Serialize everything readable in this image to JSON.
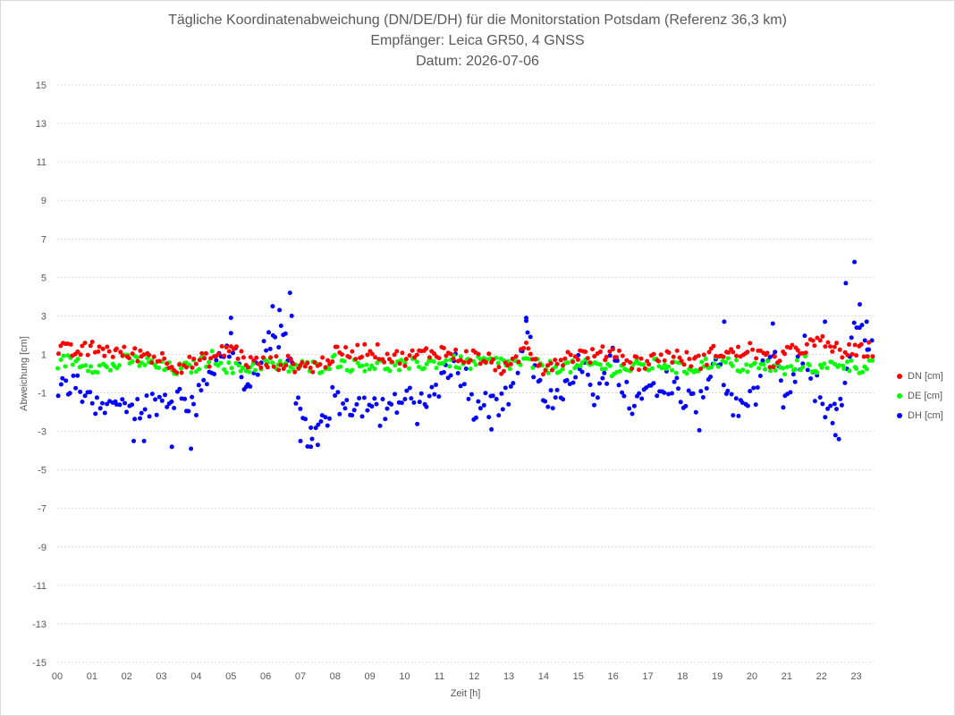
{
  "chart_data": {
    "type": "scatter",
    "title": "Tägliche Koordinatenabweichung (DN/DE/DH) für die Monitorstation Potsdam (Referenz 36,3 km)",
    "subtitle_1": "Empfänger: Leica GR50, 4 GNSS",
    "subtitle_2": "Datum: 2026-07-06",
    "xlabel": "Zeit [h]",
    "ylabel": "Abweichung [cm]",
    "xlim": [
      0,
      23.5
    ],
    "ylim": [
      -15,
      15
    ],
    "x_ticks": [
      "00",
      "01",
      "02",
      "03",
      "04",
      "05",
      "06",
      "07",
      "08",
      "09",
      "10",
      "11",
      "12",
      "13",
      "14",
      "15",
      "16",
      "17",
      "18",
      "19",
      "20",
      "21",
      "22",
      "23"
    ],
    "y_ticks": [
      15,
      13,
      11,
      9,
      7,
      5,
      3,
      1,
      -1,
      -3,
      -5,
      -7,
      -9,
      -11,
      -13,
      -15
    ],
    "grid": "horizontal dotted",
    "legend_position": "right",
    "series": [
      {
        "name": "DN [cm]",
        "color": "#ff0000",
        "segments": [
          {
            "t": 0.0,
            "v": 1.3
          },
          {
            "t": 0.5,
            "v": 1.1
          },
          {
            "t": 1.0,
            "v": 1.3
          },
          {
            "t": 1.5,
            "v": 1.2
          },
          {
            "t": 2.0,
            "v": 1.0
          },
          {
            "t": 2.5,
            "v": 1.0
          },
          {
            "t": 3.0,
            "v": 0.8
          },
          {
            "t": 3.5,
            "v": 0.4
          },
          {
            "t": 4.0,
            "v": 0.6
          },
          {
            "t": 4.5,
            "v": 0.8
          },
          {
            "t": 5.0,
            "v": 1.4
          },
          {
            "t": 5.5,
            "v": 0.6
          },
          {
            "t": 6.0,
            "v": 0.5
          },
          {
            "t": 6.5,
            "v": 0.6
          },
          {
            "t": 7.0,
            "v": 0.4
          },
          {
            "t": 7.5,
            "v": 0.4
          },
          {
            "t": 8.0,
            "v": 1.0
          },
          {
            "t": 8.5,
            "v": 1.1
          },
          {
            "t": 9.0,
            "v": 1.3
          },
          {
            "t": 9.5,
            "v": 0.9
          },
          {
            "t": 10.0,
            "v": 0.8
          },
          {
            "t": 10.5,
            "v": 1.0
          },
          {
            "t": 11.0,
            "v": 1.2
          },
          {
            "t": 11.5,
            "v": 0.9
          },
          {
            "t": 12.0,
            "v": 0.9
          },
          {
            "t": 12.5,
            "v": 0.6
          },
          {
            "t": 13.0,
            "v": 0.1
          },
          {
            "t": 13.5,
            "v": 1.5
          },
          {
            "t": 14.0,
            "v": 0.3
          },
          {
            "t": 14.5,
            "v": 0.8
          },
          {
            "t": 15.0,
            "v": 1.0
          },
          {
            "t": 15.5,
            "v": 0.9
          },
          {
            "t": 16.0,
            "v": 1.2
          },
          {
            "t": 16.5,
            "v": 0.6
          },
          {
            "t": 17.0,
            "v": 0.6
          },
          {
            "t": 17.5,
            "v": 1.0
          },
          {
            "t": 18.0,
            "v": 0.8
          },
          {
            "t": 18.5,
            "v": 0.6
          },
          {
            "t": 19.0,
            "v": 1.2
          },
          {
            "t": 19.5,
            "v": 1.0
          },
          {
            "t": 20.0,
            "v": 1.3
          },
          {
            "t": 20.5,
            "v": 0.6
          },
          {
            "t": 21.0,
            "v": 1.0
          },
          {
            "t": 21.5,
            "v": 1.4
          },
          {
            "t": 22.0,
            "v": 1.6
          },
          {
            "t": 22.5,
            "v": 1.2
          },
          {
            "t": 23.0,
            "v": 1.1
          },
          {
            "t": 23.5,
            "v": 1.3
          }
        ],
        "noise": 0.4
      },
      {
        "name": "DE [cm]",
        "color": "#00ff00",
        "segments": [
          {
            "t": 0.0,
            "v": 0.6
          },
          {
            "t": 0.5,
            "v": 0.7
          },
          {
            "t": 1.0,
            "v": 0.4
          },
          {
            "t": 1.5,
            "v": 0.3
          },
          {
            "t": 2.0,
            "v": 0.7
          },
          {
            "t": 2.5,
            "v": 0.6
          },
          {
            "t": 3.0,
            "v": 0.3
          },
          {
            "t": 3.5,
            "v": 0.2
          },
          {
            "t": 4.0,
            "v": 0.4
          },
          {
            "t": 4.5,
            "v": 0.9
          },
          {
            "t": 5.0,
            "v": 0.2
          },
          {
            "t": 5.5,
            "v": 0.3
          },
          {
            "t": 6.0,
            "v": 0.6
          },
          {
            "t": 6.5,
            "v": 0.3
          },
          {
            "t": 7.0,
            "v": 0.4
          },
          {
            "t": 7.5,
            "v": 0.3
          },
          {
            "t": 8.0,
            "v": 0.7
          },
          {
            "t": 8.5,
            "v": 0.4
          },
          {
            "t": 9.0,
            "v": 0.5
          },
          {
            "t": 9.5,
            "v": 0.4
          },
          {
            "t": 10.0,
            "v": 0.4
          },
          {
            "t": 10.5,
            "v": 0.5
          },
          {
            "t": 11.0,
            "v": 0.6
          },
          {
            "t": 11.5,
            "v": 0.6
          },
          {
            "t": 12.0,
            "v": 0.5
          },
          {
            "t": 12.5,
            "v": 0.6
          },
          {
            "t": 13.0,
            "v": 0.5
          },
          {
            "t": 13.5,
            "v": 0.6
          },
          {
            "t": 14.0,
            "v": 0.3
          },
          {
            "t": 14.5,
            "v": 0.4
          },
          {
            "t": 15.0,
            "v": 0.3
          },
          {
            "t": 15.5,
            "v": 0.5
          },
          {
            "t": 16.0,
            "v": 0.2
          },
          {
            "t": 16.5,
            "v": 0.3
          },
          {
            "t": 17.0,
            "v": 0.4
          },
          {
            "t": 17.5,
            "v": 0.5
          },
          {
            "t": 18.0,
            "v": 0.2
          },
          {
            "t": 18.5,
            "v": 0.4
          },
          {
            "t": 19.0,
            "v": 0.7
          },
          {
            "t": 19.5,
            "v": 0.4
          },
          {
            "t": 20.0,
            "v": 0.3
          },
          {
            "t": 20.5,
            "v": 0.4
          },
          {
            "t": 21.0,
            "v": 0.1
          },
          {
            "t": 21.5,
            "v": 0.6
          },
          {
            "t": 22.0,
            "v": 0.2
          },
          {
            "t": 22.5,
            "v": 0.6
          },
          {
            "t": 23.0,
            "v": 0.3
          },
          {
            "t": 23.5,
            "v": 0.6
          }
        ],
        "noise": 0.35
      },
      {
        "name": "DH [cm]",
        "color": "#0000ff",
        "segments": [
          {
            "t": 0.0,
            "v": -0.9
          },
          {
            "t": 0.5,
            "v": -0.5
          },
          {
            "t": 1.0,
            "v": -1.6
          },
          {
            "t": 1.5,
            "v": -1.3
          },
          {
            "t": 2.0,
            "v": -2.2
          },
          {
            "t": 2.5,
            "v": -1.6
          },
          {
            "t": 3.0,
            "v": -1.4
          },
          {
            "t": 3.5,
            "v": -1.2
          },
          {
            "t": 4.0,
            "v": -1.6
          },
          {
            "t": 4.5,
            "v": 0.6
          },
          {
            "t": 5.0,
            "v": 1.5
          },
          {
            "t": 5.5,
            "v": -1.2
          },
          {
            "t": 6.0,
            "v": 1.6
          },
          {
            "t": 6.5,
            "v": 2.6
          },
          {
            "t": 7.0,
            "v": -2.5
          },
          {
            "t": 7.5,
            "v": -3.0
          },
          {
            "t": 8.0,
            "v": -1.3
          },
          {
            "t": 8.5,
            "v": -1.6
          },
          {
            "t": 9.0,
            "v": -1.5
          },
          {
            "t": 9.5,
            "v": -1.8
          },
          {
            "t": 10.0,
            "v": -1.3
          },
          {
            "t": 10.5,
            "v": -1.6
          },
          {
            "t": 11.0,
            "v": -0.5
          },
          {
            "t": 11.5,
            "v": 0.4
          },
          {
            "t": 12.0,
            "v": -2.0
          },
          {
            "t": 12.5,
            "v": -1.7
          },
          {
            "t": 13.0,
            "v": -1.2
          },
          {
            "t": 13.5,
            "v": 2.2
          },
          {
            "t": 14.0,
            "v": -1.8
          },
          {
            "t": 14.5,
            "v": -0.9
          },
          {
            "t": 15.0,
            "v": 0.6
          },
          {
            "t": 15.5,
            "v": -1.2
          },
          {
            "t": 16.0,
            "v": 0.9
          },
          {
            "t": 16.5,
            "v": -1.5
          },
          {
            "t": 17.0,
            "v": -0.8
          },
          {
            "t": 17.5,
            "v": -0.3
          },
          {
            "t": 18.0,
            "v": -1.0
          },
          {
            "t": 18.5,
            "v": -1.6
          },
          {
            "t": 19.0,
            "v": 0.9
          },
          {
            "t": 19.5,
            "v": -2.0
          },
          {
            "t": 20.0,
            "v": -1.2
          },
          {
            "t": 20.5,
            "v": 1.5
          },
          {
            "t": 21.0,
            "v": -1.8
          },
          {
            "t": 21.5,
            "v": 1.4
          },
          {
            "t": 22.0,
            "v": -1.5
          },
          {
            "t": 22.5,
            "v": -2.2
          },
          {
            "t": 23.0,
            "v": 2.6
          },
          {
            "t": 23.5,
            "v": 1.0
          }
        ],
        "noise": 0.7,
        "outliers": [
          {
            "x": 5.0,
            "y": 2.9
          },
          {
            "x": 6.2,
            "y": 3.5
          },
          {
            "x": 6.4,
            "y": 3.3
          },
          {
            "x": 6.7,
            "y": 4.2
          },
          {
            "x": 6.75,
            "y": 3.0
          },
          {
            "x": 2.2,
            "y": -3.5
          },
          {
            "x": 2.5,
            "y": -3.5
          },
          {
            "x": 3.3,
            "y": -3.8
          },
          {
            "x": 3.85,
            "y": -3.9
          },
          {
            "x": 7.0,
            "y": -3.5
          },
          {
            "x": 7.3,
            "y": -3.8
          },
          {
            "x": 7.5,
            "y": -3.7
          },
          {
            "x": 12.5,
            "y": -2.9
          },
          {
            "x": 13.5,
            "y": 2.9
          },
          {
            "x": 22.5,
            "y": -3.4
          },
          {
            "x": 22.4,
            "y": -3.2
          },
          {
            "x": 22.7,
            "y": 4.7
          },
          {
            "x": 22.95,
            "y": 5.8
          },
          {
            "x": 23.1,
            "y": 3.6
          },
          {
            "x": 23.3,
            "y": 2.7
          },
          {
            "x": 19.2,
            "y": 2.7
          },
          {
            "x": 20.6,
            "y": 2.6
          },
          {
            "x": 22.1,
            "y": 2.7
          }
        ]
      }
    ]
  },
  "legend": {
    "dn": "DN [cm]",
    "de": "DE [cm]",
    "dh": "DH [cm]"
  }
}
